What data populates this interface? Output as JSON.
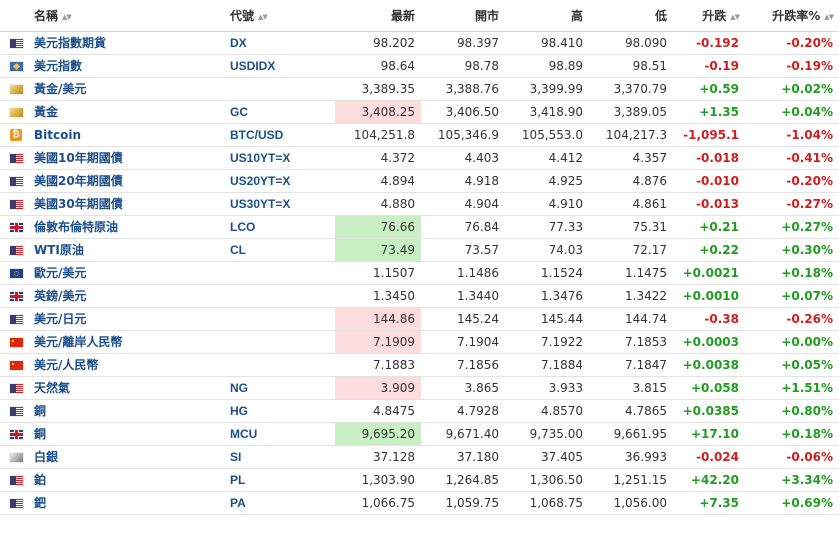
{
  "columns": {
    "name": "名稱",
    "code": "代號",
    "last": "最新",
    "open": "開市",
    "high": "高",
    "low": "低",
    "change": "升跌",
    "change_pct": "升跌率%"
  },
  "icons": {
    "sort": "sort-updown-icon",
    "flags": [
      "us-flag-icon",
      "uk-flag-icon",
      "eu-flag-icon",
      "china-flag-icon",
      "gold-icon",
      "silver-icon",
      "bitcoin-icon",
      "index-icon"
    ]
  },
  "colors": {
    "positive": "#1f9d1f",
    "negative": "#d11e1e",
    "highlight_down": "#fcdcdc",
    "highlight_up": "#c8f0c4",
    "link": "#1c4f8a"
  },
  "rows": [
    {
      "flag": "us",
      "name": "美元指數期貨",
      "code": "DX",
      "last": "98.202",
      "open": "98.397",
      "high": "98.410",
      "low": "98.090",
      "change": "-0.192",
      "change_pct": "-0.20%",
      "dir": "neg",
      "hl": ""
    },
    {
      "flag": "idx",
      "name": "美元指數",
      "code": "USDIDX",
      "last": "98.64",
      "open": "98.78",
      "high": "98.89",
      "low": "98.51",
      "change": "-0.19",
      "change_pct": "-0.19%",
      "dir": "neg",
      "hl": ""
    },
    {
      "flag": "gold",
      "name": "黃金/美元",
      "code": "",
      "last": "3,389.35",
      "open": "3,388.76",
      "high": "3,399.99",
      "low": "3,370.79",
      "change": "+0.59",
      "change_pct": "+0.02%",
      "dir": "pos",
      "hl": ""
    },
    {
      "flag": "gold",
      "name": "黃金",
      "code": "GC",
      "last": "3,408.25",
      "open": "3,406.50",
      "high": "3,418.90",
      "low": "3,389.05",
      "change": "+1.35",
      "change_pct": "+0.04%",
      "dir": "pos",
      "hl": "down"
    },
    {
      "flag": "btc",
      "name": "Bitcoin",
      "code": "BTC/USD",
      "last": "104,251.8",
      "open": "105,346.9",
      "high": "105,553.0",
      "low": "104,217.3",
      "change": "-1,095.1",
      "change_pct": "-1.04%",
      "dir": "neg",
      "hl": ""
    },
    {
      "flag": "us",
      "name": "美國10年期國債",
      "code": "US10YT=X",
      "last": "4.372",
      "open": "4.403",
      "high": "4.412",
      "low": "4.357",
      "change": "-0.018",
      "change_pct": "-0.41%",
      "dir": "neg",
      "hl": ""
    },
    {
      "flag": "us",
      "name": "美國20年期國債",
      "code": "US20YT=X",
      "last": "4.894",
      "open": "4.918",
      "high": "4.925",
      "low": "4.876",
      "change": "-0.010",
      "change_pct": "-0.20%",
      "dir": "neg",
      "hl": ""
    },
    {
      "flag": "us",
      "name": "美國30年期國債",
      "code": "US30YT=X",
      "last": "4.880",
      "open": "4.904",
      "high": "4.910",
      "low": "4.861",
      "change": "-0.013",
      "change_pct": "-0.27%",
      "dir": "neg",
      "hl": ""
    },
    {
      "flag": "gb",
      "name": "倫敦布倫特原油",
      "code": "LCO",
      "last": "76.66",
      "open": "76.84",
      "high": "77.33",
      "low": "75.31",
      "change": "+0.21",
      "change_pct": "+0.27%",
      "dir": "pos",
      "hl": "up"
    },
    {
      "flag": "us",
      "name": "WTI原油",
      "code": "CL",
      "last": "73.49",
      "open": "73.57",
      "high": "74.03",
      "low": "72.17",
      "change": "+0.22",
      "change_pct": "+0.30%",
      "dir": "pos",
      "hl": "up"
    },
    {
      "flag": "eu",
      "name": "歐元/美元",
      "code": "",
      "last": "1.1507",
      "open": "1.1486",
      "high": "1.1524",
      "low": "1.1475",
      "change": "+0.0021",
      "change_pct": "+0.18%",
      "dir": "pos",
      "hl": ""
    },
    {
      "flag": "gb",
      "name": "英鎊/美元",
      "code": "",
      "last": "1.3450",
      "open": "1.3440",
      "high": "1.3476",
      "low": "1.3422",
      "change": "+0.0010",
      "change_pct": "+0.07%",
      "dir": "pos",
      "hl": ""
    },
    {
      "flag": "us",
      "name": "美元/日元",
      "code": "",
      "last": "144.86",
      "open": "145.24",
      "high": "145.44",
      "low": "144.74",
      "change": "-0.38",
      "change_pct": "-0.26%",
      "dir": "neg",
      "hl": "down"
    },
    {
      "flag": "cn",
      "name": "美元/離岸人民幣",
      "code": "",
      "last": "7.1909",
      "open": "7.1904",
      "high": "7.1922",
      "low": "7.1853",
      "change": "+0.0003",
      "change_pct": "+0.00%",
      "dir": "pos",
      "hl": "down"
    },
    {
      "flag": "cn",
      "name": "美元/人民幣",
      "code": "",
      "last": "7.1883",
      "open": "7.1856",
      "high": "7.1884",
      "low": "7.1847",
      "change": "+0.0038",
      "change_pct": "+0.05%",
      "dir": "pos",
      "hl": ""
    },
    {
      "flag": "us",
      "name": "天然氣",
      "code": "NG",
      "last": "3.909",
      "open": "3.865",
      "high": "3.933",
      "low": "3.815",
      "change": "+0.058",
      "change_pct": "+1.51%",
      "dir": "pos",
      "hl": "down"
    },
    {
      "flag": "us",
      "name": "銅",
      "code": "HG",
      "last": "4.8475",
      "open": "4.7928",
      "high": "4.8570",
      "low": "4.7865",
      "change": "+0.0385",
      "change_pct": "+0.80%",
      "dir": "pos",
      "hl": ""
    },
    {
      "flag": "gb",
      "name": "銅",
      "code": "MCU",
      "last": "9,695.20",
      "open": "9,671.40",
      "high": "9,735.00",
      "low": "9,661.95",
      "change": "+17.10",
      "change_pct": "+0.18%",
      "dir": "pos",
      "hl": "up"
    },
    {
      "flag": "silver",
      "name": "白銀",
      "code": "SI",
      "last": "37.128",
      "open": "37.180",
      "high": "37.405",
      "low": "36.993",
      "change": "-0.024",
      "change_pct": "-0.06%",
      "dir": "neg",
      "hl": ""
    },
    {
      "flag": "us",
      "name": "鉑",
      "code": "PL",
      "last": "1,303.90",
      "open": "1,264.85",
      "high": "1,306.50",
      "low": "1,251.15",
      "change": "+42.20",
      "change_pct": "+3.34%",
      "dir": "pos",
      "hl": ""
    },
    {
      "flag": "us",
      "name": "鈀",
      "code": "PA",
      "last": "1,066.75",
      "open": "1,059.75",
      "high": "1,068.75",
      "low": "1,056.00",
      "change": "+7.35",
      "change_pct": "+0.69%",
      "dir": "pos",
      "hl": ""
    }
  ]
}
